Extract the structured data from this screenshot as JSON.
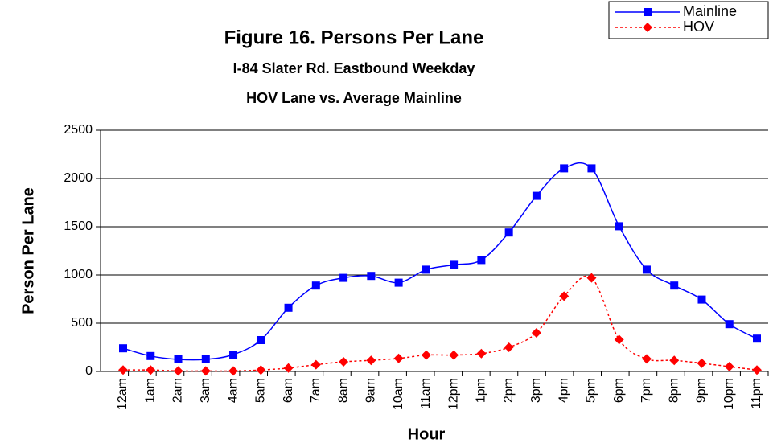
{
  "chart_data": {
    "type": "line",
    "title": "Figure 16. Persons Per Lane",
    "subtitle": [
      "I-84 Slater Rd. Eastbound Weekday",
      "HOV Lane vs. Average Mainline"
    ],
    "x_label": "Hour",
    "y_label": "Person Per Lane",
    "categories": [
      "12am",
      "1am",
      "2am",
      "3am",
      "4am",
      "5am",
      "6am",
      "7am",
      "8am",
      "9am",
      "10am",
      "11am",
      "12pm",
      "1pm",
      "2pm",
      "3pm",
      "4pm",
      "5pm",
      "6pm",
      "7pm",
      "8pm",
      "9pm",
      "10pm",
      "11pm"
    ],
    "series": [
      {
        "name": "Mainline",
        "color": "#0000ff",
        "marker": "square",
        "dash": "solid",
        "values": [
          240,
          160,
          125,
          125,
          175,
          325,
          660,
          890,
          970,
          990,
          920,
          1055,
          1105,
          1155,
          1440,
          1820,
          2105,
          2105,
          1505,
          1055,
          890,
          745,
          490,
          340
        ]
      },
      {
        "name": "HOV",
        "color": "#ff0000",
        "marker": "diamond",
        "dash": "dotted",
        "values": [
          15,
          15,
          5,
          5,
          5,
          15,
          35,
          70,
          100,
          115,
          135,
          170,
          170,
          185,
          250,
          400,
          780,
          970,
          330,
          130,
          115,
          85,
          50,
          15
        ]
      }
    ],
    "ylim": [
      0,
      2500
    ],
    "yticks": [
      0,
      500,
      1000,
      1500,
      2000,
      2500
    ],
    "grid": true,
    "smooth": true,
    "legend": "upper right"
  }
}
